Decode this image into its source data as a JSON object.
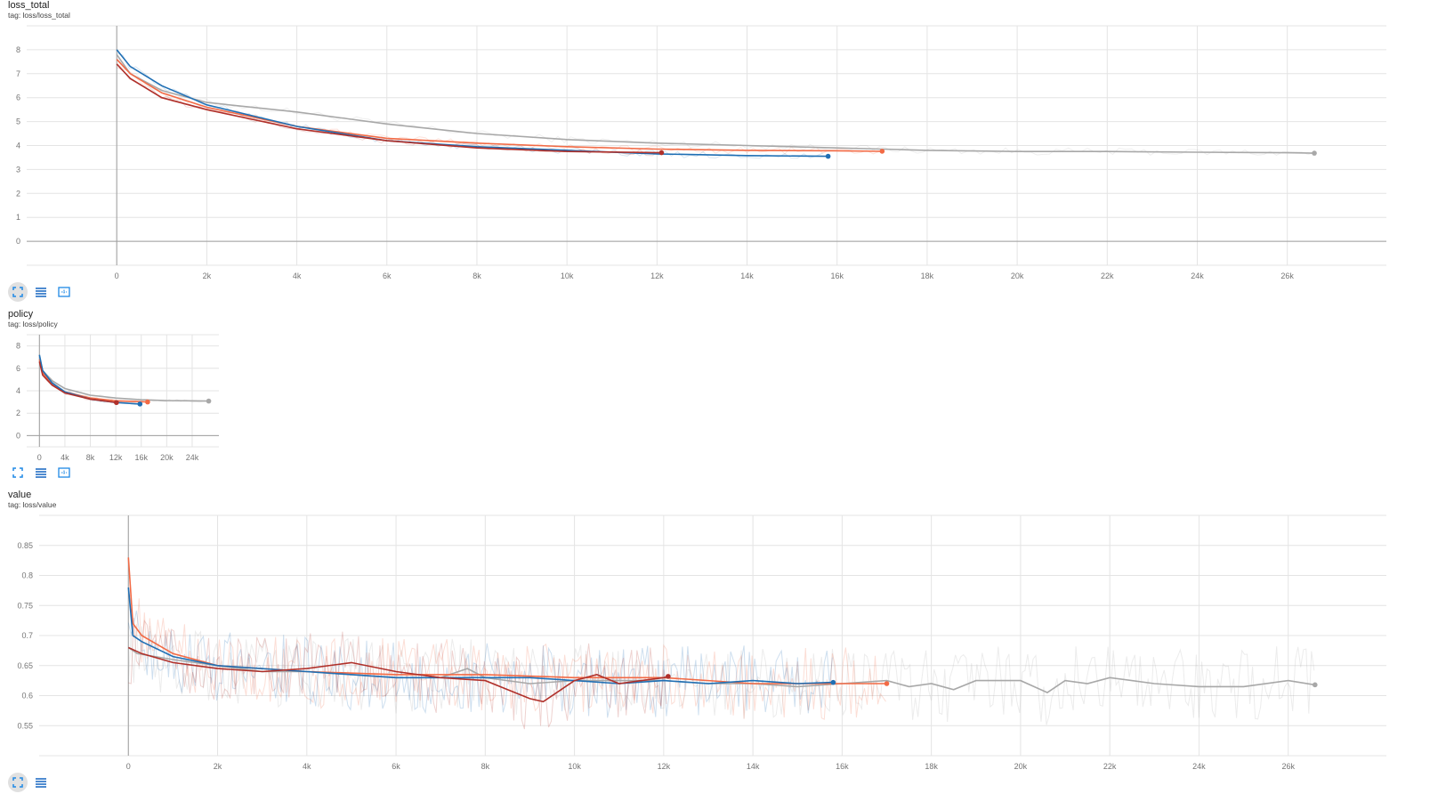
{
  "colors": {
    "gray": "#a8a8a8",
    "orange": "#f26a45",
    "blue": "#1f6fb4",
    "darkred": "#b0302a",
    "toolbar_icon": "#1e88e5",
    "toolbar_dark": "#1565c0"
  },
  "toolbar_icons": [
    "fullscreen-icon",
    "list-icon",
    "fit-domain-icon"
  ],
  "charts": [
    {
      "title": "loss_total",
      "tag": "tag: loss/loss_total"
    },
    {
      "title": "policy",
      "tag": "tag: loss/policy"
    },
    {
      "title": "value",
      "tag": "tag: loss/value"
    }
  ],
  "chart_data": [
    {
      "type": "line",
      "title": "loss_total",
      "subtitle": "tag: loss/loss_total",
      "xlim": [
        -2000,
        28200
      ],
      "ylim": [
        -1,
        9
      ],
      "x_ticks": [
        0,
        2000,
        4000,
        6000,
        8000,
        10000,
        12000,
        14000,
        16000,
        18000,
        20000,
        22000,
        24000,
        26000
      ],
      "x_tick_labels": [
        "0",
        "2k",
        "4k",
        "6k",
        "8k",
        "10k",
        "12k",
        "14k",
        "16k",
        "18k",
        "20k",
        "22k",
        "24k",
        "26k"
      ],
      "y_ticks": [
        0,
        1,
        2,
        3,
        4,
        5,
        6,
        7,
        8
      ],
      "y_tick_labels": [
        "0",
        "1",
        "2",
        "3",
        "4",
        "5",
        "6",
        "7",
        "8"
      ],
      "grid": true,
      "series": [
        {
          "color": "#a8a8a8",
          "x": [
            0,
            300,
            1000,
            2000,
            4000,
            6000,
            8000,
            10000,
            12000,
            14000,
            16000,
            17000,
            18000,
            20000,
            22000,
            24000,
            26000,
            26600
          ],
          "y": [
            7.8,
            7.0,
            6.3,
            5.8,
            5.4,
            4.9,
            4.5,
            4.25,
            4.1,
            4.0,
            3.9,
            3.85,
            3.8,
            3.75,
            3.75,
            3.72,
            3.7,
            3.68
          ]
        },
        {
          "color": "#f26a45",
          "x": [
            0,
            300,
            1000,
            2000,
            4000,
            6000,
            8000,
            10000,
            12000,
            14000,
            16000,
            17000
          ],
          "y": [
            7.6,
            7.0,
            6.2,
            5.6,
            4.8,
            4.3,
            4.1,
            3.95,
            3.85,
            3.8,
            3.78,
            3.76
          ]
        },
        {
          "color": "#1f6fb4",
          "x": [
            0,
            300,
            1000,
            2000,
            4000,
            6000,
            8000,
            10000,
            12000,
            14000,
            15800
          ],
          "y": [
            8.0,
            7.3,
            6.5,
            5.7,
            4.8,
            4.2,
            3.95,
            3.8,
            3.65,
            3.58,
            3.55
          ]
        },
        {
          "color": "#b0302a",
          "x": [
            0,
            300,
            1000,
            2000,
            4000,
            6000,
            8000,
            10000,
            12100
          ],
          "y": [
            7.4,
            6.8,
            6.0,
            5.5,
            4.7,
            4.2,
            3.9,
            3.75,
            3.7
          ]
        }
      ]
    },
    {
      "type": "line",
      "title": "policy",
      "subtitle": "tag: loss/policy",
      "xlim": [
        -2000,
        28200
      ],
      "ylim": [
        -1,
        9
      ],
      "x_ticks": [
        0,
        4000,
        8000,
        12000,
        16000,
        20000,
        24000
      ],
      "x_tick_labels": [
        "0",
        "4k",
        "8k",
        "12k",
        "16k",
        "20k",
        "24k"
      ],
      "y_ticks": [
        0,
        2,
        4,
        6,
        8
      ],
      "y_tick_labels": [
        "0",
        "2",
        "4",
        "6",
        "8"
      ],
      "grid": true,
      "series": [
        {
          "color": "#a8a8a8",
          "x": [
            0,
            500,
            2000,
            4000,
            8000,
            12000,
            16000,
            20000,
            24000,
            26600
          ],
          "y": [
            7.0,
            5.8,
            4.9,
            4.2,
            3.6,
            3.35,
            3.2,
            3.12,
            3.1,
            3.08
          ]
        },
        {
          "color": "#f26a45",
          "x": [
            0,
            500,
            2000,
            4000,
            8000,
            12000,
            17000
          ],
          "y": [
            6.8,
            5.6,
            4.6,
            3.9,
            3.35,
            3.1,
            3.0
          ]
        },
        {
          "color": "#1f6fb4",
          "x": [
            0,
            500,
            2000,
            4000,
            8000,
            12000,
            15800
          ],
          "y": [
            7.2,
            5.8,
            4.7,
            3.9,
            3.25,
            2.95,
            2.82
          ]
        },
        {
          "color": "#b0302a",
          "x": [
            0,
            500,
            2000,
            4000,
            8000,
            12100
          ],
          "y": [
            6.6,
            5.4,
            4.5,
            3.8,
            3.25,
            2.95
          ]
        }
      ]
    },
    {
      "type": "line",
      "title": "value",
      "subtitle": "tag: loss/value",
      "xlim": [
        -2000,
        28200
      ],
      "ylim": [
        0.5,
        0.9
      ],
      "x_ticks": [
        0,
        2000,
        4000,
        6000,
        8000,
        10000,
        12000,
        14000,
        16000,
        18000,
        20000,
        22000,
        24000,
        26000
      ],
      "x_tick_labels": [
        "0",
        "2k",
        "4k",
        "6k",
        "8k",
        "10k",
        "12k",
        "14k",
        "16k",
        "18k",
        "20k",
        "22k",
        "24k",
        "26k"
      ],
      "y_ticks": [
        0.55,
        0.6,
        0.65,
        0.7,
        0.75,
        0.8,
        0.85
      ],
      "y_tick_labels": [
        "0.55",
        "0.6",
        "0.65",
        "0.7",
        "0.75",
        "0.8",
        "0.85"
      ],
      "grid": true,
      "series": [
        {
          "color": "#a8a8a8",
          "x": [
            0,
            200,
            1000,
            2000,
            3000,
            4000,
            5000,
            6000,
            7000,
            7600,
            8000,
            9000,
            10000,
            11000,
            12000,
            13000,
            14000,
            15000,
            16000,
            17000,
            17500,
            18000,
            18500,
            19000,
            20000,
            20600,
            21000,
            21500,
            22000,
            23000,
            24000,
            25000,
            26000,
            26600
          ],
          "y": [
            0.68,
            0.67,
            0.66,
            0.65,
            0.64,
            0.64,
            0.635,
            0.63,
            0.63,
            0.645,
            0.63,
            0.62,
            0.625,
            0.625,
            0.625,
            0.62,
            0.62,
            0.615,
            0.62,
            0.625,
            0.615,
            0.62,
            0.61,
            0.625,
            0.625,
            0.605,
            0.625,
            0.62,
            0.63,
            0.62,
            0.615,
            0.615,
            0.625,
            0.618
          ]
        },
        {
          "color": "#f26a45",
          "x": [
            0,
            100,
            300,
            1000,
            2000,
            4000,
            6000,
            8000,
            10000,
            12000,
            14000,
            16000,
            17000
          ],
          "y": [
            0.83,
            0.72,
            0.7,
            0.67,
            0.65,
            0.64,
            0.635,
            0.635,
            0.63,
            0.63,
            0.62,
            0.62,
            0.62
          ]
        },
        {
          "color": "#1f6fb4",
          "x": [
            0,
            100,
            300,
            1000,
            2000,
            4000,
            6000,
            8000,
            9000,
            10000,
            11000,
            12000,
            13000,
            14000,
            15000,
            15800
          ],
          "y": [
            0.78,
            0.7,
            0.69,
            0.665,
            0.65,
            0.64,
            0.63,
            0.63,
            0.63,
            0.625,
            0.62,
            0.625,
            0.62,
            0.625,
            0.62,
            0.622
          ]
        },
        {
          "color": "#b0302a",
          "x": [
            0,
            300,
            1000,
            2000,
            3000,
            4000,
            5000,
            6000,
            7000,
            8000,
            8500,
            9000,
            9300,
            9700,
            10000,
            10500,
            11000,
            11500,
            12000,
            12100
          ],
          "y": [
            0.68,
            0.67,
            0.655,
            0.645,
            0.64,
            0.645,
            0.655,
            0.64,
            0.63,
            0.625,
            0.61,
            0.595,
            0.59,
            0.61,
            0.625,
            0.635,
            0.62,
            0.625,
            0.63,
            0.632
          ]
        }
      ]
    }
  ]
}
